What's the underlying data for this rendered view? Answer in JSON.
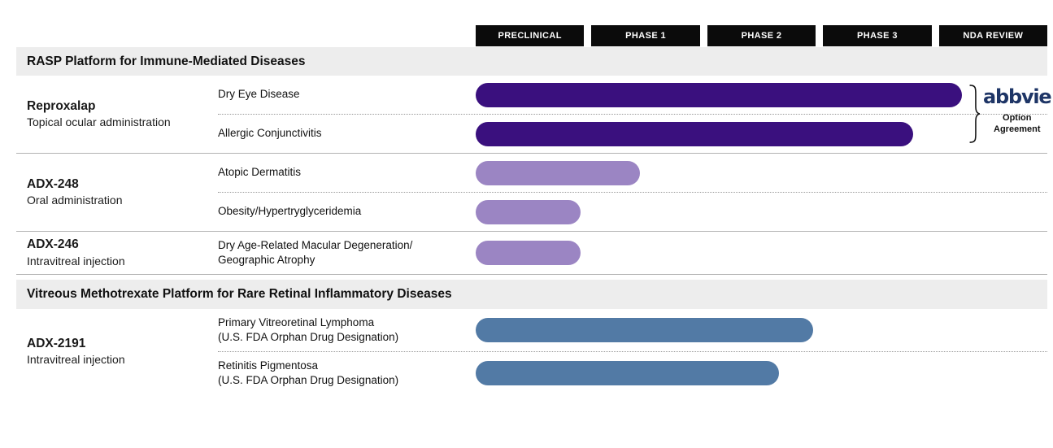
{
  "phases": [
    "PRECLINICAL",
    "PHASE 1",
    "PHASE 2",
    "PHASE 3",
    "NDA REVIEW"
  ],
  "colors": {
    "dark_purple": "#3a107e",
    "light_purple": "#9b85c3",
    "blue": "#527aa5",
    "abbvie_navy": "#1e3566",
    "section_band": "#ededed",
    "phase_box": "#0b0b0b"
  },
  "sections": [
    {
      "title": "RASP Platform for Immune-Mediated Diseases",
      "groups": [
        {
          "drug": "Reproxalap",
          "route": "Topical ocular administration",
          "rows": [
            {
              "indication": "Dry Eye Disease",
              "stage": "NDA Review",
              "bar_pct": 85.1,
              "color": "#3a107e"
            },
            {
              "indication": "Allergic Conjunctivitis",
              "stage": "Phase 3",
              "bar_pct": 76.5,
              "color": "#3a107e"
            }
          ],
          "partner": {
            "logo": "abbvie",
            "note": "Option Agreement"
          }
        },
        {
          "drug": "ADX-248",
          "route": "Oral administration",
          "rows": [
            {
              "indication": "Atopic Dermatitis",
              "stage": "Phase 1",
              "bar_pct": 28.7,
              "color": "#9b85c3"
            },
            {
              "indication": "Obesity/Hypertryglyceridemia",
              "stage": "Preclinical",
              "bar_pct": 18.4,
              "color": "#9b85c3"
            }
          ]
        },
        {
          "drug": "ADX-246",
          "route": "Intravitreal injection",
          "rows": [
            {
              "indication": "Dry Age-Related Macular Degeneration/",
              "indication_line2": "Geographic Atrophy",
              "stage": "Preclinical",
              "bar_pct": 18.4,
              "color": "#9b85c3"
            }
          ]
        }
      ]
    },
    {
      "title": "Vitreous Methotrexate Platform for Rare Retinal Inflammatory Diseases",
      "groups": [
        {
          "drug": "ADX-2191",
          "route": "Intravitreal injection",
          "rows": [
            {
              "indication": "Primary Vitreoretinal Lymphoma",
              "indication_line2": "(U.S. FDA Orphan Drug Designation)",
              "stage": "Phase 2",
              "bar_pct": 59.0,
              "color": "#527aa5"
            },
            {
              "indication": "Retinitis Pigmentosa",
              "indication_line2": "(U.S. FDA Orphan Drug Designation)",
              "stage": "Phase 2",
              "bar_pct": 53.1,
              "color": "#527aa5"
            }
          ]
        }
      ]
    }
  ],
  "chart_data": {
    "type": "bar",
    "orientation": "horizontal",
    "title": "Drug development pipeline by clinical phase",
    "x_axis_labels": [
      "PRECLINICAL",
      "PHASE 1",
      "PHASE 2",
      "PHASE 3",
      "NDA REVIEW"
    ],
    "x_range": [
      0,
      5
    ],
    "grid": false,
    "series": [
      {
        "program": "Reproxalap",
        "administration": "Topical ocular administration",
        "indication": "Dry Eye Disease",
        "phase_progress": 4.2,
        "highest_phase": "NDA Review",
        "color": "#3a107e",
        "partner": "abbvie Option Agreement"
      },
      {
        "program": "Reproxalap",
        "administration": "Topical ocular administration",
        "indication": "Allergic Conjunctivitis",
        "phase_progress": 3.8,
        "highest_phase": "Phase 3",
        "color": "#3a107e",
        "partner": "abbvie Option Agreement"
      },
      {
        "program": "ADX-248",
        "administration": "Oral administration",
        "indication": "Atopic Dermatitis",
        "phase_progress": 1.4,
        "highest_phase": "Phase 1",
        "color": "#9b85c3"
      },
      {
        "program": "ADX-248",
        "administration": "Oral administration",
        "indication": "Obesity/Hypertryglyceridemia",
        "phase_progress": 1.0,
        "highest_phase": "Preclinical",
        "color": "#9b85c3"
      },
      {
        "program": "ADX-246",
        "administration": "Intravitreal injection",
        "indication": "Dry Age-Related Macular Degeneration/Geographic Atrophy",
        "phase_progress": 1.0,
        "highest_phase": "Preclinical",
        "color": "#9b85c3"
      },
      {
        "program": "ADX-2191",
        "administration": "Intravitreal injection",
        "indication": "Primary Vitreoretinal Lymphoma (U.S. FDA Orphan Drug Designation)",
        "phase_progress": 3.0,
        "highest_phase": "Phase 2",
        "color": "#527aa5"
      },
      {
        "program": "ADX-2191",
        "administration": "Intravitreal injection",
        "indication": "Retinitis Pigmentosa (U.S. FDA Orphan Drug Designation)",
        "phase_progress": 2.7,
        "highest_phase": "Phase 2",
        "color": "#527aa5"
      }
    ]
  }
}
